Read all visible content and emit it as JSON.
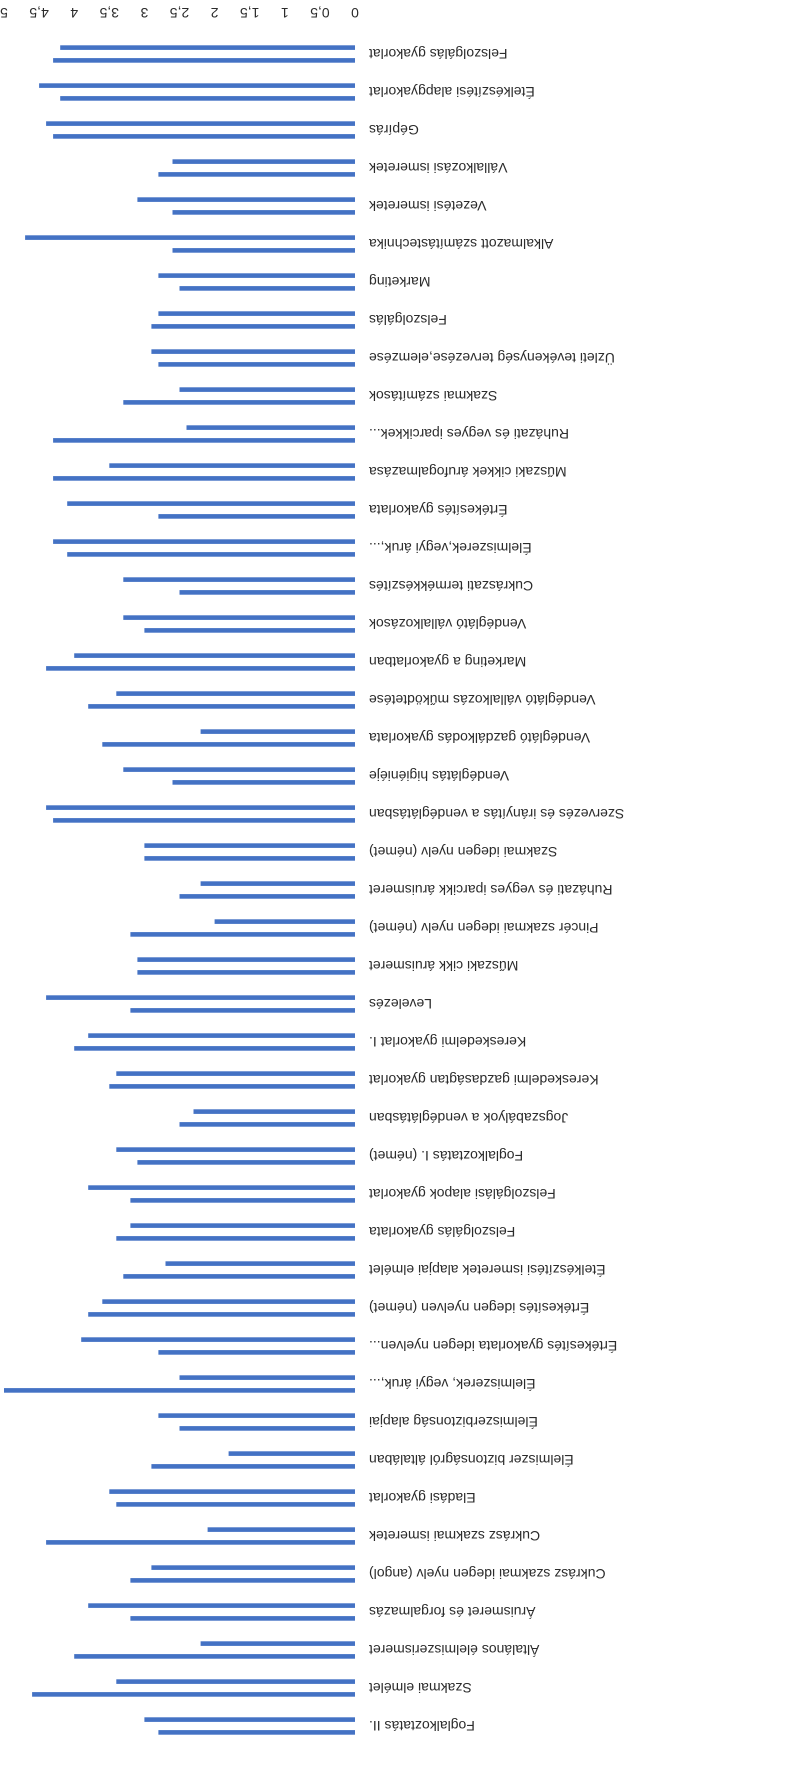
{
  "chart_data": {
    "type": "bar",
    "orientation": "horizontal",
    "rendering": "page rotated 180 degrees",
    "title": "",
    "xlabel": "",
    "ylabel": "",
    "xlim": [
      0,
      5
    ],
    "ticks": [
      "0",
      "0,5",
      "1",
      "1,5",
      "2",
      "2,5",
      "3",
      "3,5",
      "4",
      "4,5",
      "5"
    ],
    "grid": false,
    "legend": "none",
    "bar_color": "#4472C4",
    "categories": [
      "Foglalkoztatás II.",
      "Szakmai elmélet",
      "Általános élelmiszerismeret",
      "Áruismeret és forgalmazás",
      "Cukrász szakmai idegen nyelv (angol)",
      "Cukrász szakmai ismeretek",
      "Eladási gyakorlat",
      "Élelmiszer biztonságról általában",
      "Élelmiszerbiztonság alapjai",
      "Élelmiszerek, vegyi áruk,...",
      "Értékesítés gyakorlata idegen nyelven...",
      "Értékesítés idegen nyelven (német)",
      "Ételkészítési ismeretek alapjai elmélet",
      "Felszolgálás gyakorlata",
      "Felszolgálási alapok gyakorlat",
      "Foglalkoztatás I. (német)",
      "Jogszabályok a vendéglátásban",
      "Kereskedelmi gazdaságtan gyakorlat",
      "Kereskedelmi gyakorlat I.",
      "Levelezés",
      "Műszaki cikk áruismeret",
      "Pincér szakmai idegen nyelv (német)",
      "Ruházati és vegyes iparcikk áruismeret",
      "Szakmai idegen nyelv (német)",
      "Szervezés és irányítás a vendéglátásban",
      "Vendéglátás higiéniéje",
      "Vendéglátó gazdálkodás gyakorlata",
      "Vendéglátó vállalkozás működtetése",
      "Marketing a gyakorlatban",
      "Vendéglátó vállalkozások",
      "Cukrászati termékkészítés",
      "Élelmiszerek,vegyi áruk,...",
      "Értékesítés gyakorlata",
      "Műszaki cikkek árufogalmazása",
      "Ruházati és vegyes iparcikkek...",
      "Szakmai számítások",
      "Üzleti tevékenység tervezése,elemzése",
      "Felszolgálás",
      "Marketing",
      "Alkalmazott számítástechnika",
      "Vezetési ismeretek",
      "Vállalkozási ismeretek",
      "Gépírás",
      "Ételkészítési alapgyakorlat",
      "Felszolgálás gyakorlat"
    ],
    "series": [
      {
        "values_by_category": [
          [
            2.8,
            3.0
          ],
          [
            4.6,
            3.4
          ],
          [
            4.0,
            2.2
          ],
          [
            3.2,
            3.8
          ],
          [
            3.2,
            2.9
          ],
          [
            4.4,
            2.1
          ],
          [
            3.4,
            3.5
          ],
          [
            2.9,
            1.8
          ],
          [
            2.5,
            2.8
          ],
          [
            5.0,
            2.5
          ],
          [
            2.8,
            3.9
          ],
          [
            3.8,
            3.6
          ],
          [
            3.3,
            2.7
          ],
          [
            3.4,
            3.2
          ],
          [
            3.2,
            3.8
          ],
          [
            3.1,
            3.4
          ],
          [
            2.5,
            2.3
          ],
          [
            3.5,
            3.4
          ],
          [
            4.0,
            3.8
          ],
          [
            3.2,
            4.4
          ],
          [
            3.1,
            3.1
          ],
          [
            3.2,
            2.0
          ],
          [
            2.5,
            2.2
          ],
          [
            3.0,
            3.0
          ],
          [
            4.3,
            4.4
          ],
          [
            2.6,
            3.3
          ],
          [
            3.6,
            2.2
          ],
          [
            3.8,
            3.4
          ],
          [
            4.4,
            4.0
          ],
          [
            3.0,
            3.3
          ],
          [
            2.5,
            3.3
          ],
          [
            4.1,
            4.3
          ],
          [
            2.8,
            4.1
          ],
          [
            4.3,
            3.5
          ],
          [
            4.3,
            2.4
          ],
          [
            3.3,
            2.5
          ],
          [
            2.8,
            2.9
          ],
          [
            2.9,
            2.8
          ],
          [
            2.5,
            2.8
          ],
          [
            2.6,
            4.7
          ],
          [
            2.6,
            3.1
          ],
          [
            2.8,
            2.6
          ],
          [
            4.3,
            4.4
          ],
          [
            4.2,
            4.5
          ],
          [
            4.3,
            4.2
          ]
        ]
      }
    ]
  }
}
